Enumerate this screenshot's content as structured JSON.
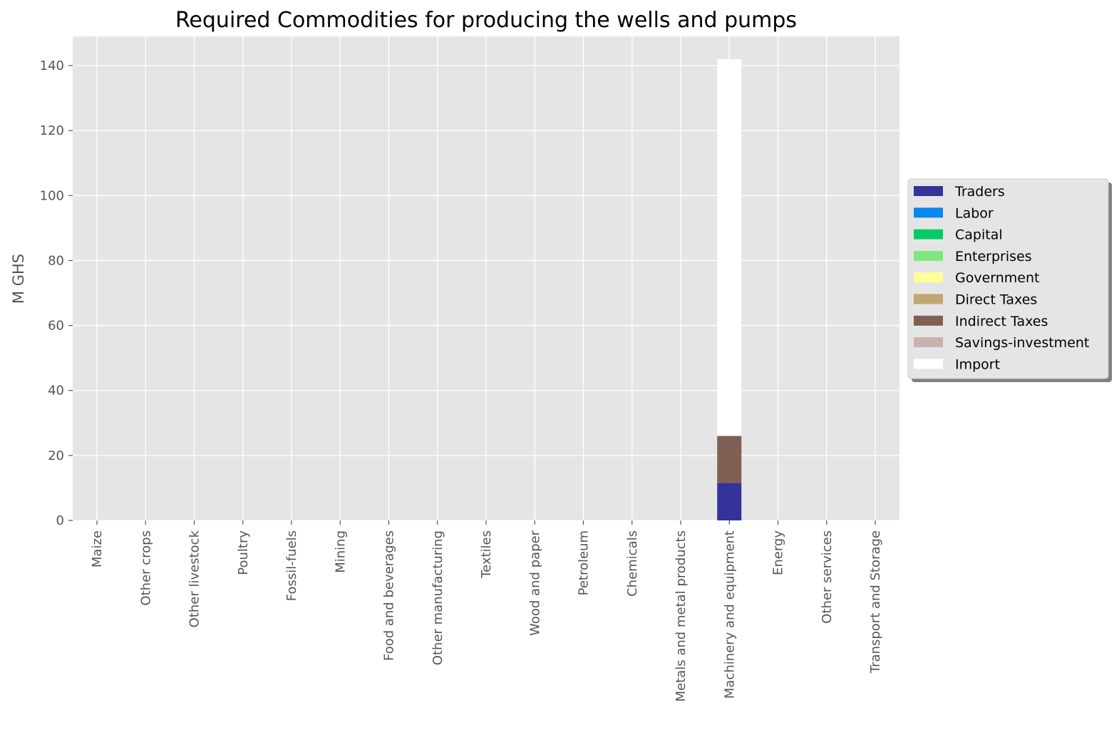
{
  "chart_data": {
    "type": "bar",
    "stacked": true,
    "title": "Required Commodities for producing the wells and pumps",
    "xlabel": "",
    "ylabel": "M GHS",
    "ylim": [
      0,
      149
    ],
    "yticks": [
      0,
      20,
      40,
      60,
      80,
      100,
      120,
      140
    ],
    "grid": true,
    "legend_position": "right",
    "categories": [
      "Maize",
      "Other crops",
      "Other livestock",
      "Poultry",
      "Fossil-fuels",
      "Mining",
      "Food and beverages",
      "Other manufacturing",
      "Textiles",
      "Wood and paper",
      "Petroleum",
      "Chemicals",
      "Metals and metal products",
      "Machinery and equipment",
      "Energy",
      "Other services",
      "Transport and Storage"
    ],
    "series": [
      {
        "name": "Traders",
        "color": "#333399",
        "values": [
          0,
          0,
          0,
          0,
          0,
          0,
          0,
          0,
          0,
          0,
          0,
          0,
          0,
          11.5,
          0,
          0,
          0
        ]
      },
      {
        "name": "Labor",
        "color": "#0a88ee",
        "values": [
          0,
          0,
          0,
          0,
          0,
          0,
          0,
          0,
          0,
          0,
          0,
          0,
          0,
          0,
          0,
          0,
          0
        ]
      },
      {
        "name": "Capital",
        "color": "#00cc66",
        "values": [
          0,
          0,
          0,
          0,
          0,
          0,
          0,
          0,
          0,
          0,
          0,
          0,
          0,
          0,
          0,
          0,
          0
        ]
      },
      {
        "name": "Enterprises",
        "color": "#80e680",
        "values": [
          0,
          0,
          0,
          0,
          0,
          0,
          0,
          0,
          0,
          0,
          0,
          0,
          0,
          0,
          0,
          0,
          0
        ]
      },
      {
        "name": "Government",
        "color": "#ffff99",
        "values": [
          0,
          0,
          0,
          0,
          0,
          0,
          0,
          0,
          0,
          0,
          0,
          0,
          0,
          0,
          0,
          0,
          0
        ]
      },
      {
        "name": "Direct Taxes",
        "color": "#c0a670",
        "values": [
          0,
          0,
          0,
          0,
          0,
          0,
          0,
          0,
          0,
          0,
          0,
          0,
          0,
          0,
          0,
          0,
          0
        ]
      },
      {
        "name": "Indirect Taxes",
        "color": "#805f54",
        "values": [
          0,
          0,
          0,
          0,
          0,
          0,
          0,
          0,
          0,
          0,
          0,
          0,
          0,
          14.5,
          0,
          0,
          0
        ]
      },
      {
        "name": "Savings-investment",
        "color": "#c7b2ad",
        "values": [
          0,
          0,
          0,
          0,
          0,
          0,
          0,
          0,
          0,
          0,
          0,
          0,
          0,
          0,
          0,
          0,
          0
        ]
      },
      {
        "name": "Import",
        "color": "#ffffff",
        "values": [
          0,
          0,
          0,
          0,
          0,
          0,
          0,
          0,
          0,
          0,
          0,
          0,
          0,
          116,
          0,
          0,
          0
        ]
      }
    ],
    "colors": {
      "plot_background": "#e5e5e5",
      "grid": "#ffffff",
      "tick_text": "#555555"
    }
  }
}
